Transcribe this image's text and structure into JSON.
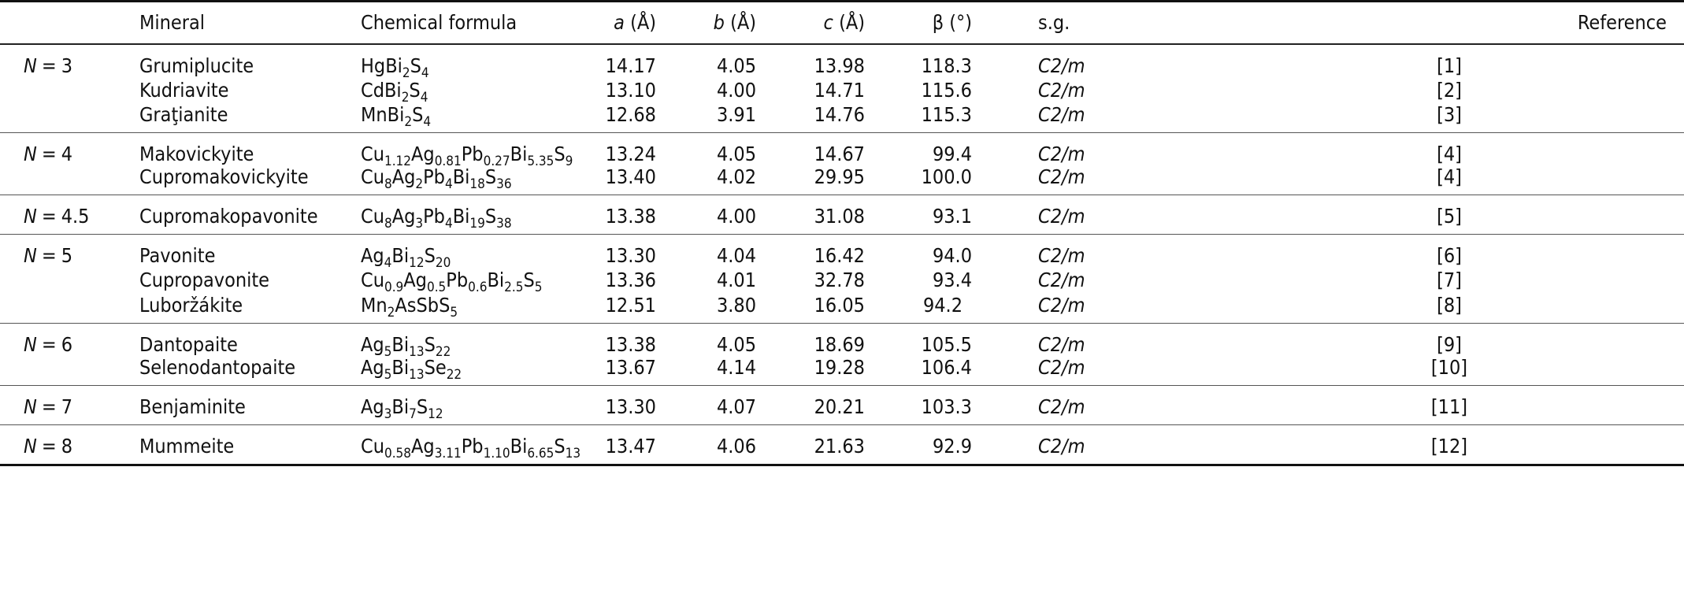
{
  "table": {
    "headers": {
      "group": "",
      "mineral": "Mineral",
      "formula": "Chemical formula",
      "a_sym": "a",
      "a_unit": " (Å)",
      "b_sym": "b",
      "b_unit": " (Å)",
      "c_sym": "c",
      "c_unit": " (Å)",
      "beta": "β (°)",
      "sg": "s.g.",
      "reference": "Reference"
    },
    "groups": [
      {
        "N": "3",
        "rows": [
          {
            "mineral": "Grumiplucite",
            "formula": [
              [
                "Hg",
                ""
              ],
              [
                "Bi",
                "2"
              ],
              [
                "S",
                "4"
              ]
            ],
            "a": "14.17",
            "b": "4.05",
            "c": "13.98",
            "beta": "118.3",
            "sg": "C2/m",
            "ref": "[1]"
          },
          {
            "mineral": "Kudriavite",
            "formula": [
              [
                "Cd",
                ""
              ],
              [
                "Bi",
                "2"
              ],
              [
                "S",
                "4"
              ]
            ],
            "a": "13.10",
            "b": "4.00",
            "c": "14.71",
            "beta": "115.6",
            "sg": "C2/m",
            "ref": "[2]"
          },
          {
            "mineral": "Graţianite",
            "formula": [
              [
                "Mn",
                ""
              ],
              [
                "Bi",
                "2"
              ],
              [
                "S",
                "4"
              ]
            ],
            "a": "12.68",
            "b": "3.91",
            "c": "14.76",
            "beta": "115.3",
            "sg": "C2/m",
            "ref": "[3]"
          }
        ]
      },
      {
        "N": "4",
        "rows": [
          {
            "mineral": "Makovickyite",
            "formula": [
              [
                "Cu",
                "1.12"
              ],
              [
                "Ag",
                "0.81"
              ],
              [
                "Pb",
                "0.27"
              ],
              [
                "Bi",
                "5.35"
              ],
              [
                "S",
                "9"
              ]
            ],
            "a": "13.24",
            "b": "4.05",
            "c": "14.67",
            "beta": "99.4",
            "sg": "C2/m",
            "ref": "[4]"
          },
          {
            "mineral": "Cupromakovickyite",
            "formula": [
              [
                "Cu",
                "8"
              ],
              [
                "Ag",
                "2"
              ],
              [
                "Pb",
                "4"
              ],
              [
                "Bi",
                "18"
              ],
              [
                "S",
                "36"
              ]
            ],
            "a": "13.40",
            "b": "4.02",
            "c": "29.95",
            "beta": "100.0",
            "sg": "C2/m",
            "ref": "[4]"
          }
        ]
      },
      {
        "N": "4.5",
        "rows": [
          {
            "mineral": "Cupromakopavonite",
            "formula": [
              [
                "Cu",
                "8"
              ],
              [
                "Ag",
                "3"
              ],
              [
                "Pb",
                "4"
              ],
              [
                "Bi",
                "19"
              ],
              [
                "S",
                "38"
              ]
            ],
            "a": "13.38",
            "b": "4.00",
            "c": "31.08",
            "beta": "93.1",
            "sg": "C2/m",
            "ref": "[5]"
          }
        ]
      },
      {
        "N": "5",
        "rows": [
          {
            "mineral": "Pavonite",
            "formula": [
              [
                "Ag",
                "4"
              ],
              [
                "Bi",
                "12"
              ],
              [
                "S",
                "20"
              ]
            ],
            "a": "13.30",
            "b": "4.04",
            "c": "16.42",
            "beta": "94.0",
            "sg": "C2/m",
            "ref": "[6]"
          },
          {
            "mineral": "Cupropavonite",
            "formula": [
              [
                "Cu",
                "0.9"
              ],
              [
                "Ag",
                "0.5"
              ],
              [
                "Pb",
                "0.6"
              ],
              [
                "Bi",
                "2.5"
              ],
              [
                "S",
                "5"
              ]
            ],
            "a": "13.36",
            "b": "4.01",
            "c": "32.78",
            "beta": "93.4",
            "sg": "C2/m",
            "ref": "[7]"
          },
          {
            "mineral": "Luboržákite",
            "formula": [
              [
                "Mn",
                "2"
              ],
              [
                "AsSb",
                ""
              ],
              [
                "S",
                "5"
              ]
            ],
            "a": "12.51",
            "b": "3.80",
            "c": "16.05",
            "beta": "94.2",
            "sg": "C2/m",
            "ref": "[8]"
          }
        ]
      },
      {
        "N": "6",
        "rows": [
          {
            "mineral": "Dantopaite",
            "formula": [
              [
                "Ag",
                "5"
              ],
              [
                "Bi",
                "13"
              ],
              [
                "S",
                "22"
              ]
            ],
            "a": "13.38",
            "b": "4.05",
            "c": "18.69",
            "beta": "105.5",
            "sg": "C2/m",
            "ref": "[9]"
          },
          {
            "mineral": "Selenodantopaite",
            "formula": [
              [
                "Ag",
                "5"
              ],
              [
                "Bi",
                "13"
              ],
              [
                "Se",
                "22"
              ]
            ],
            "a": "13.67",
            "b": "4.14",
            "c": "19.28",
            "beta": "106.4",
            "sg": "C2/m",
            "ref": "[10]"
          }
        ]
      },
      {
        "N": "7",
        "rows": [
          {
            "mineral": "Benjaminite",
            "formula": [
              [
                "Ag",
                "3"
              ],
              [
                "Bi",
                "7"
              ],
              [
                "S",
                "12"
              ]
            ],
            "a": "13.30",
            "b": "4.07",
            "c": "20.21",
            "beta": "103.3",
            "sg": "C2/m",
            "ref": "[11]"
          }
        ]
      },
      {
        "N": "8",
        "rows": [
          {
            "mineral": "Mummeite",
            "formula": [
              [
                "Cu",
                "0.58"
              ],
              [
                "Ag",
                "3.11"
              ],
              [
                "Pb",
                "1.10"
              ],
              [
                "Bi",
                "6.65"
              ],
              [
                "S",
                "13"
              ]
            ],
            "a": "13.47",
            "b": "4.06",
            "c": "21.63",
            "beta": "92.9",
            "sg": "C2/m",
            "ref": "[12]"
          }
        ]
      }
    ]
  }
}
